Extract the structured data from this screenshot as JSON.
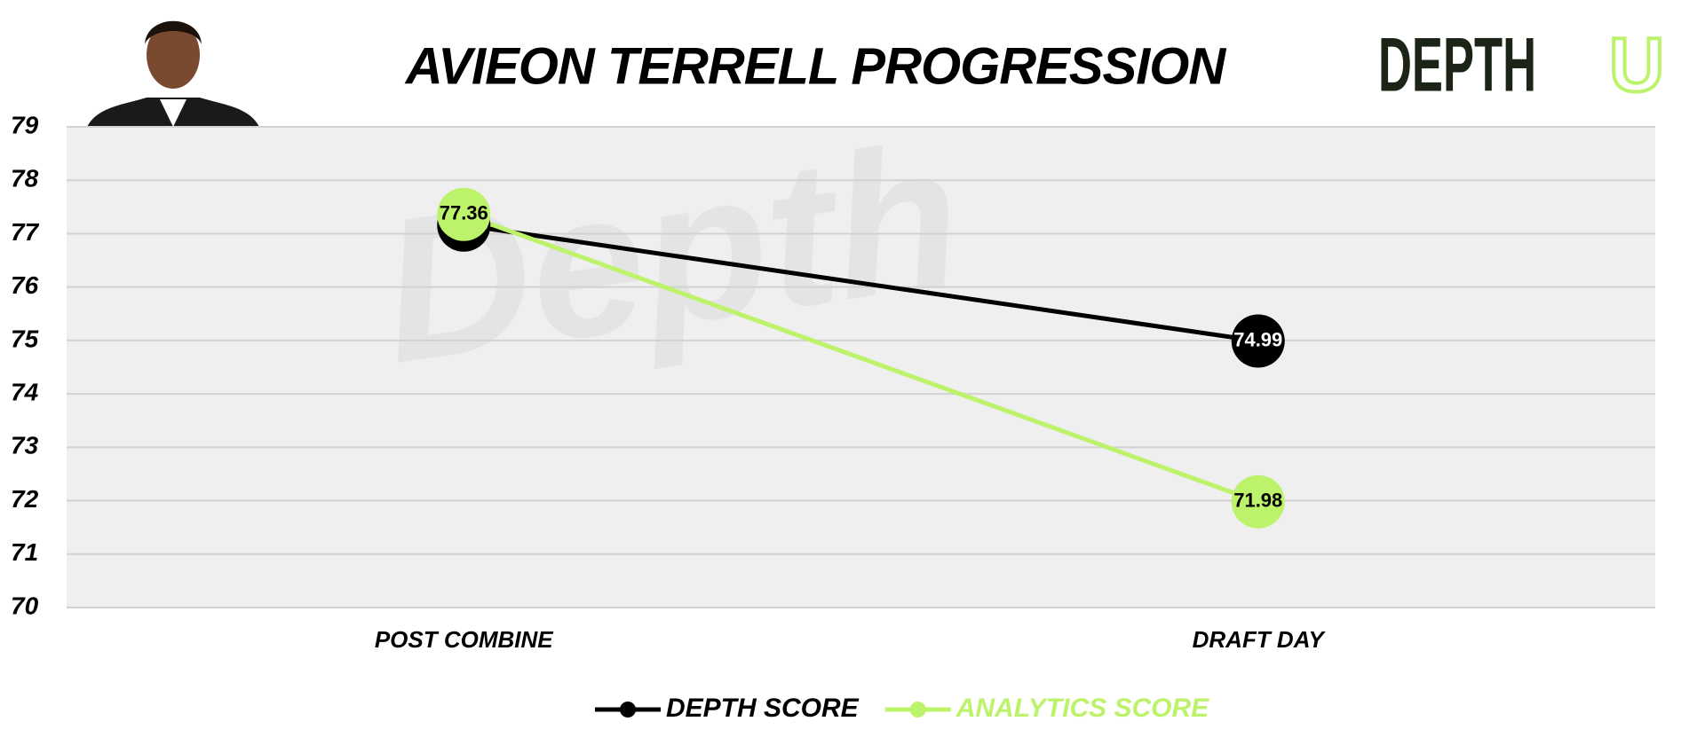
{
  "chart_data": {
    "type": "line",
    "title": "AVIEON TERRELL PROGRESSION",
    "logo_text": "DEPTH",
    "logo_accent": "U",
    "watermark": "Depth",
    "categories": [
      "POST COMBINE",
      "DRAFT DAY"
    ],
    "series": [
      {
        "name": "DEPTH SCORE",
        "color": "#000000",
        "label_color": "#ffffff",
        "values": [
          77.16,
          74.99
        ]
      },
      {
        "name": "ANALYTICS SCORE",
        "color": "#bdf26b",
        "label_color": "#000000",
        "values": [
          77.36,
          71.98
        ]
      }
    ],
    "ylim": [
      70,
      79
    ],
    "yticks": [
      70,
      71,
      72,
      73,
      74,
      75,
      76,
      77,
      78,
      79
    ],
    "grid": true,
    "legend": "bottom"
  }
}
